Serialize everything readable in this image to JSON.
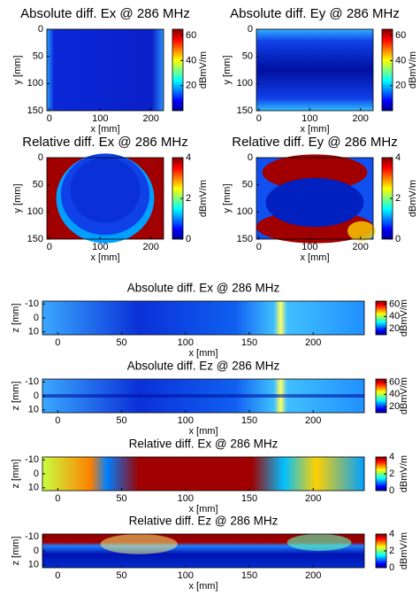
{
  "chart_data": [
    {
      "type": "heatmap",
      "title": "Absolute diff. Ex @ 286 MHz",
      "xlabel": "x [mm]",
      "ylabel": "y [mm]",
      "xlim": [
        -5,
        225
      ],
      "ylim": [
        0,
        150
      ],
      "xticks": [
        0,
        100,
        200
      ],
      "yticks": [
        0,
        50,
        100,
        150
      ],
      "colorbar": {
        "label": "dBmV/m",
        "lim": [
          0,
          65
        ],
        "ticks": [
          20,
          40,
          60
        ]
      }
    },
    {
      "type": "heatmap",
      "title": "Absolute diff. Ey @ 286 MHz",
      "xlabel": "x [mm]",
      "ylabel": "y [mm]",
      "xlim": [
        -5,
        225
      ],
      "ylim": [
        0,
        150
      ],
      "xticks": [
        0,
        100,
        200
      ],
      "yticks": [
        0,
        50,
        100,
        150
      ],
      "colorbar": {
        "label": "dBmV/m",
        "lim": [
          0,
          65
        ],
        "ticks": [
          20,
          40,
          60
        ]
      }
    },
    {
      "type": "heatmap",
      "title": "Relative diff. Ex @ 286 MHz",
      "xlabel": "x [mm]",
      "ylabel": "y [mm]",
      "xlim": [
        -5,
        225
      ],
      "ylim": [
        0,
        150
      ],
      "xticks": [
        0,
        100,
        200
      ],
      "yticks": [
        0,
        50,
        100,
        150
      ],
      "colorbar": {
        "label": "dBmV/m",
        "lim": [
          0,
          4
        ],
        "ticks": [
          0,
          2,
          4
        ]
      }
    },
    {
      "type": "heatmap",
      "title": "Relative diff. Ey @ 286 MHz",
      "xlabel": "x [mm]",
      "ylabel": "y [mm]",
      "xlim": [
        -5,
        225
      ],
      "ylim": [
        0,
        150
      ],
      "xticks": [
        0,
        100,
        200
      ],
      "yticks": [
        0,
        50,
        100,
        150
      ],
      "colorbar": {
        "label": "dBmV/m",
        "lim": [
          0,
          4
        ],
        "ticks": [
          0,
          2,
          4
        ]
      }
    },
    {
      "type": "heatmap",
      "title": "Absolute diff. Ex @ 286 MHz",
      "xlabel": "x [mm]",
      "ylabel": "z [mm]",
      "xlim": [
        -12,
        240
      ],
      "ylim": [
        -12,
        12
      ],
      "xticks": [
        0,
        50,
        100,
        150,
        200
      ],
      "yticks": [
        -10,
        0,
        10
      ],
      "colorbar": {
        "label": "dBmV/m",
        "lim": [
          10,
          65
        ],
        "ticks": [
          20,
          40,
          60
        ]
      }
    },
    {
      "type": "heatmap",
      "title": "Absolute diff. Ez @ 286 MHz",
      "xlabel": "x [mm]",
      "ylabel": "z [mm]",
      "xlim": [
        -12,
        240
      ],
      "ylim": [
        -12,
        12
      ],
      "xticks": [
        0,
        50,
        100,
        150,
        200
      ],
      "yticks": [
        -10,
        0,
        10
      ],
      "colorbar": {
        "label": "dBmV/m",
        "lim": [
          10,
          65
        ],
        "ticks": [
          20,
          40,
          60
        ]
      }
    },
    {
      "type": "heatmap",
      "title": "Relative diff. Ex @ 286 MHz",
      "xlabel": "x [mm]",
      "ylabel": "z [mm]",
      "xlim": [
        -12,
        240
      ],
      "ylim": [
        -12,
        12
      ],
      "xticks": [
        0,
        50,
        100,
        150,
        200
      ],
      "yticks": [
        -10,
        0,
        10
      ],
      "colorbar": {
        "label": "dBmV/m",
        "lim": [
          0,
          4
        ],
        "ticks": [
          0,
          2,
          4
        ]
      }
    },
    {
      "type": "heatmap",
      "title": "Relative diff. Ez @ 286 MHz",
      "xlabel": "x [mm]",
      "ylabel": "z [mm]",
      "xlim": [
        -12,
        240
      ],
      "ylim": [
        -12,
        12
      ],
      "xticks": [
        0,
        50,
        100,
        150,
        200
      ],
      "yticks": [
        -10,
        0,
        10
      ],
      "colorbar": {
        "label": "dBmV/m",
        "lim": [
          0,
          4
        ],
        "ticks": [
          0,
          2,
          4
        ]
      }
    }
  ]
}
